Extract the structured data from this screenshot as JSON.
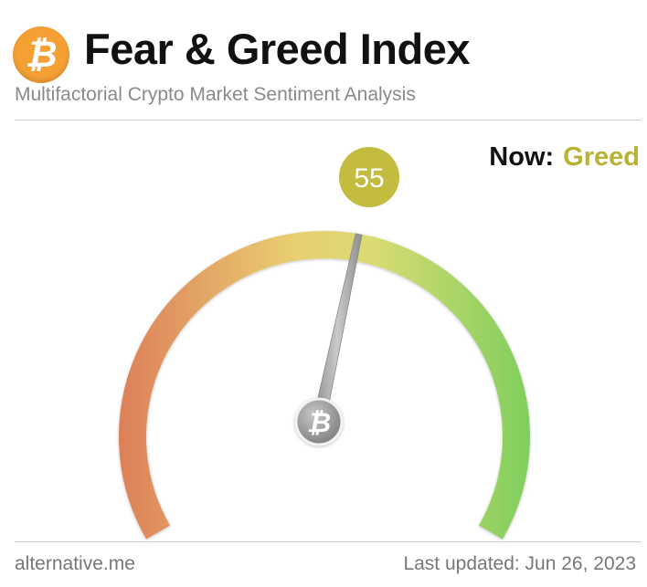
{
  "header": {
    "logo_symbol": "₿",
    "logo_icon": "bitcoin-icon",
    "title": "Fear & Greed Index",
    "subtitle": "Multifactorial Crypto Market Sentiment Analysis"
  },
  "status": {
    "now_label": "Now:",
    "now_value": "Greed",
    "now_color": "#b8b334"
  },
  "gauge": {
    "value": 55,
    "value_text": "55",
    "min": 0,
    "max": 100,
    "badge_color": "#c4bc3e",
    "needle_color": "#a8a8a8",
    "hub_symbol": "₿",
    "hub_icon": "bitcoin-icon",
    "gradient_colors": [
      "#dd7f59",
      "#e9ce71",
      "#d9db72",
      "#7fcf5e"
    ]
  },
  "footer": {
    "source": "alternative.me",
    "last_updated": "Last updated: Jun 26, 2023"
  }
}
